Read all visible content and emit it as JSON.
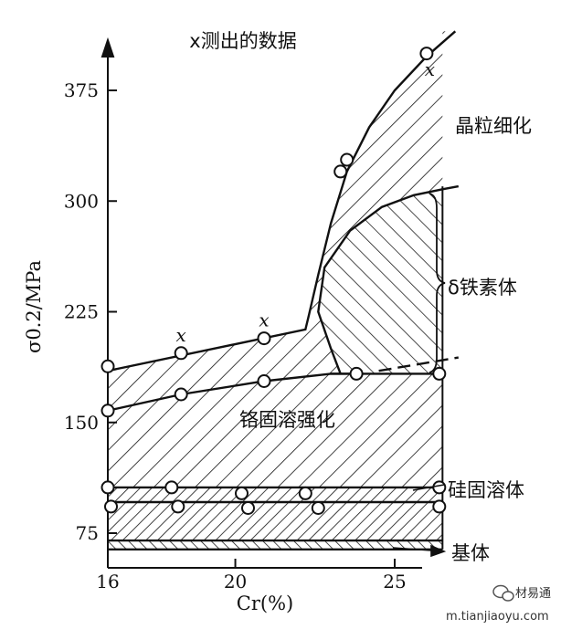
{
  "chart_data": {
    "type": "area",
    "title": "x测出的数据",
    "xlabel": "Cr(%)",
    "ylabel": "σ0.2/MPa",
    "xlim": [
      16,
      27
    ],
    "ylim": [
      55,
      420
    ],
    "x_ticks": [
      16,
      20,
      25
    ],
    "y_ticks": [
      75,
      150,
      225,
      300,
      375
    ],
    "regions": [
      {
        "name": "基体",
        "band": [
          64,
          70
        ]
      },
      {
        "name": "硅固溶体",
        "band": [
          70,
          105
        ]
      },
      {
        "name": "铬固溶强化",
        "band": [
          105,
          183
        ]
      },
      {
        "name": "δ铁素体",
        "band": [
          183,
          308
        ]
      },
      {
        "name": "晶粒细化",
        "band": [
          183,
          415
        ]
      }
    ],
    "series": [
      {
        "name": "x",
        "x": [
          16.0,
          18.3,
          20.9,
          23.3,
          23.5,
          26.0
        ],
        "y": [
          188,
          197,
          207,
          320,
          328,
          400
        ]
      },
      {
        "x": [
          16.0,
          18.3,
          20.9,
          23.8,
          26.4
        ],
        "y": [
          158,
          169,
          178,
          183,
          183
        ]
      },
      {
        "x": [
          16.0,
          18.0,
          20.2,
          22.2,
          26.4
        ],
        "y": [
          106,
          106,
          102,
          102,
          106
        ]
      },
      {
        "x": [
          16.1,
          18.2,
          20.4,
          22.6,
          26.4
        ],
        "y": [
          93,
          93,
          92,
          92,
          93
        ]
      }
    ],
    "curves": {
      "upper": {
        "x": [
          16.0,
          22.2,
          22.3,
          22.6,
          23.0,
          23.5,
          24.2,
          25.0,
          26.0,
          26.9
        ],
        "y": [
          185,
          213,
          222,
          250,
          285,
          320,
          350,
          375,
          398,
          415
        ]
      },
      "mid": {
        "x": [
          16.0,
          18.3,
          20.9,
          23.0,
          23.8
        ],
        "y": [
          158,
          169,
          178,
          183,
          183
        ]
      },
      "delta": {
        "x": [
          23.3,
          23.0,
          22.6,
          22.8,
          23.6,
          24.6,
          25.6,
          26.5,
          27.0
        ],
        "y": [
          183,
          200,
          225,
          255,
          280,
          296,
          304,
          308,
          310
        ]
      },
      "dash": {
        "x": [
          24.5,
          27.0
        ],
        "y": [
          185,
          194
        ]
      },
      "si_top": 106,
      "si_bottom": 96,
      "base_top": 70,
      "base_bottom": 64,
      "right_x": 26.5
    },
    "point_labels": [
      {
        "text": "x",
        "x": 18.3,
        "y": 205
      },
      {
        "text": "x",
        "x": 20.9,
        "y": 215
      },
      {
        "text": "x",
        "x": 26.1,
        "y": 385
      }
    ]
  },
  "watermark": {
    "brand": "材易通",
    "url": "m.tianjiaoyu.com"
  }
}
